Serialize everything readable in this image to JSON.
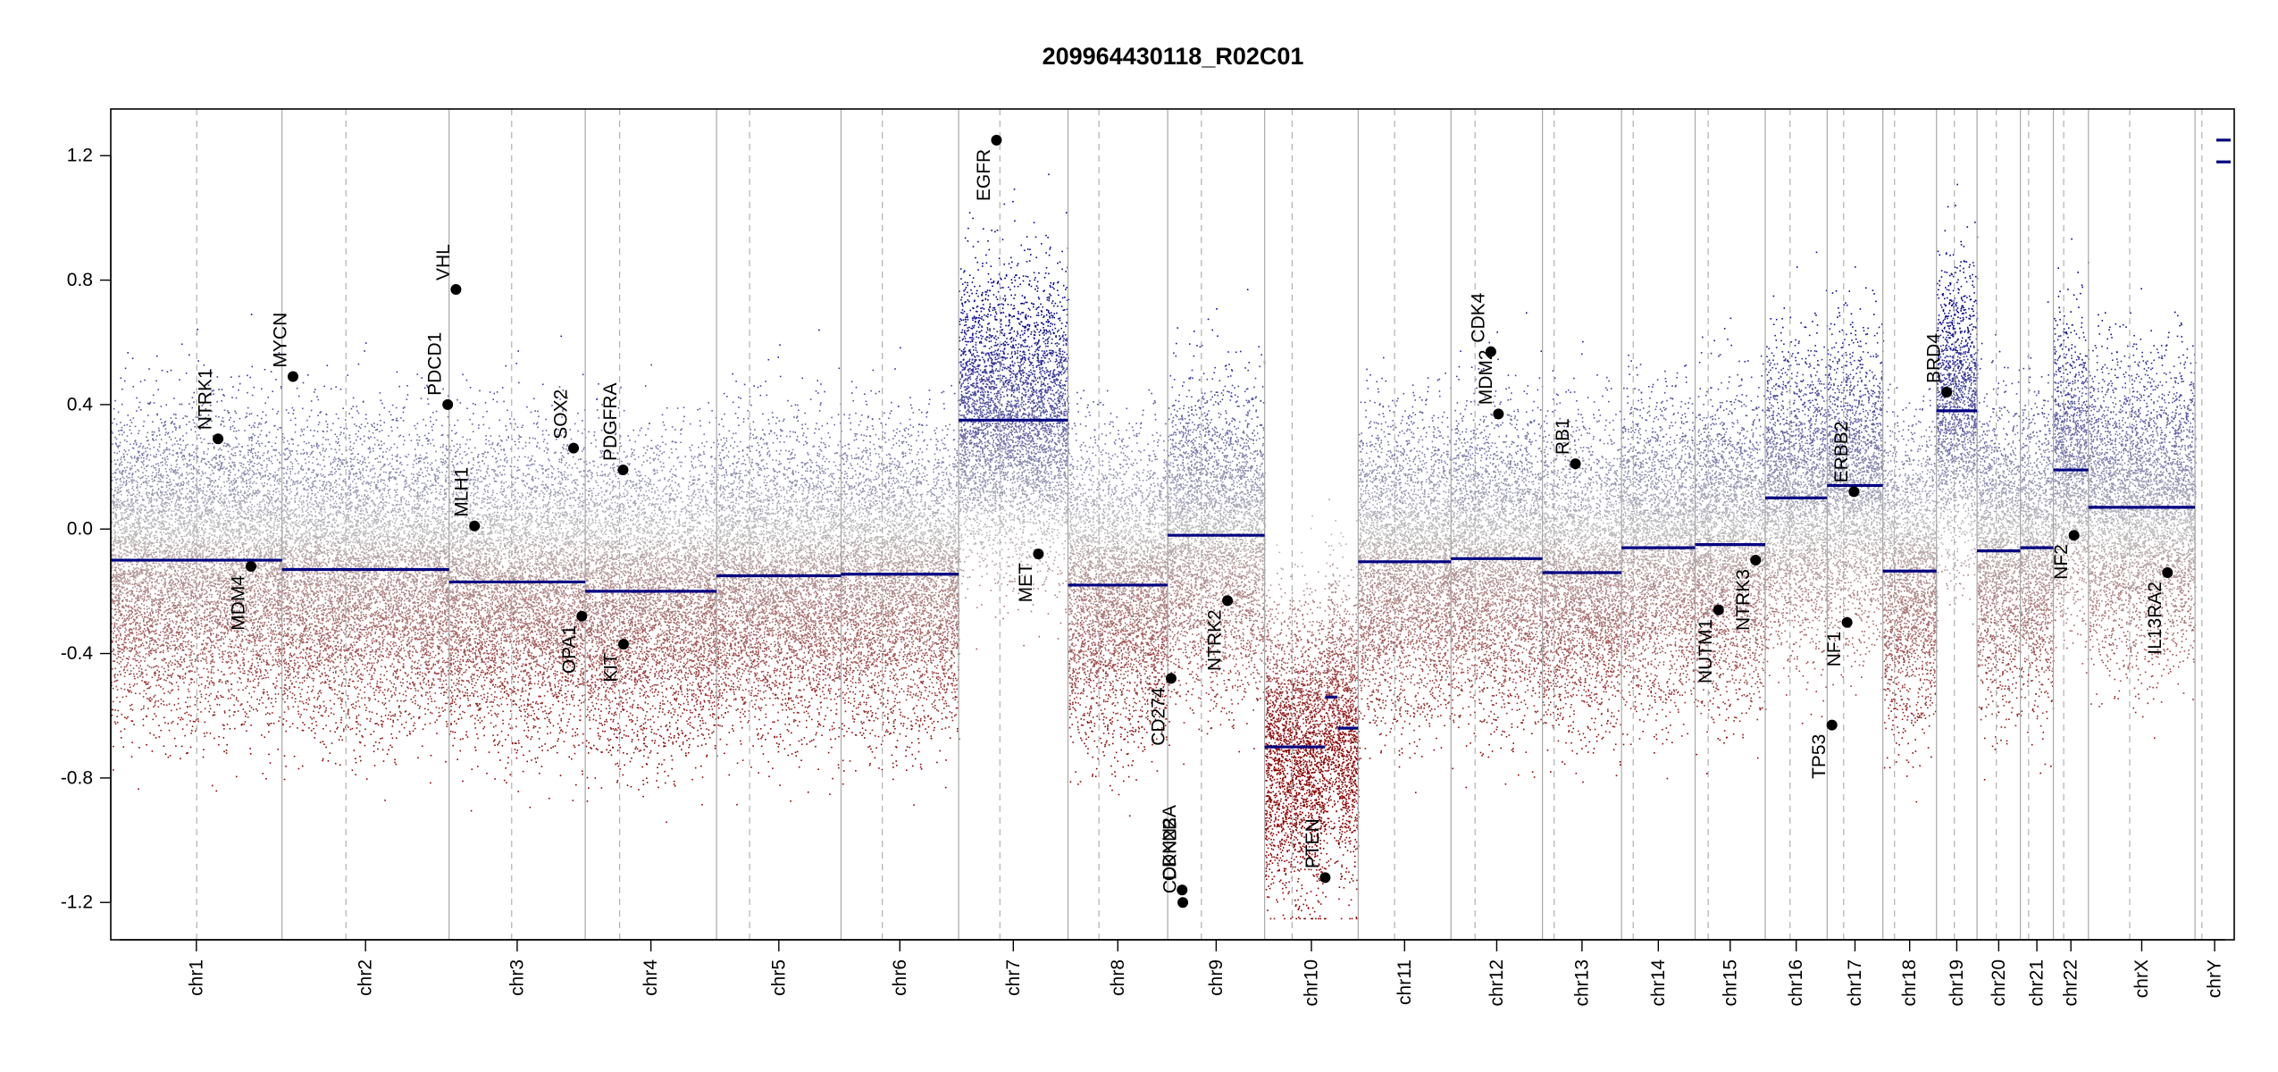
{
  "chart_data": {
    "type": "scatter",
    "title": "209964430118_R02C01",
    "xlabel": "",
    "ylabel": "",
    "ylim": [
      -1.32,
      1.35
    ],
    "y_ticks": [
      -1.2,
      -0.8,
      -0.4,
      0.0,
      0.4,
      0.8,
      1.2
    ],
    "y_tick_labels": [
      "-1.2",
      "-0.8",
      "-0.4",
      "0.0",
      "0.4",
      "0.8",
      "1.2"
    ],
    "colors": {
      "gain": "#00008b",
      "loss": "#8b0000",
      "neutral": "#bbbbbb",
      "segment": "#000080",
      "marker": "#000000"
    },
    "chromosomes": [
      {
        "name": "chr1",
        "label": "chr1",
        "length": 249,
        "centromere": 125,
        "segments": [
          {
            "start": 0,
            "end": 249,
            "value": -0.1
          }
        ]
      },
      {
        "name": "chr2",
        "label": "chr2",
        "length": 243,
        "centromere": 93,
        "segments": [
          {
            "start": 0,
            "end": 243,
            "value": -0.13
          }
        ]
      },
      {
        "name": "chr3",
        "label": "chr3",
        "length": 198,
        "centromere": 91,
        "segments": [
          {
            "start": 0,
            "end": 198,
            "value": -0.17
          }
        ]
      },
      {
        "name": "chr4",
        "label": "chr4",
        "length": 191,
        "centromere": 50,
        "segments": [
          {
            "start": 0,
            "end": 191,
            "value": -0.2
          }
        ]
      },
      {
        "name": "chr5",
        "label": "chr5",
        "length": 181,
        "centromere": 48,
        "segments": [
          {
            "start": 0,
            "end": 181,
            "value": -0.15
          }
        ]
      },
      {
        "name": "chr6",
        "label": "chr6",
        "length": 171,
        "centromere": 60,
        "segments": [
          {
            "start": 0,
            "end": 171,
            "value": -0.145
          }
        ]
      },
      {
        "name": "chr7",
        "label": "chr7",
        "length": 159,
        "centromere": 60,
        "segments": [
          {
            "start": 0,
            "end": 159,
            "value": 0.35
          }
        ]
      },
      {
        "name": "chr8",
        "label": "chr8",
        "length": 145,
        "centromere": 45,
        "segments": [
          {
            "start": 0,
            "end": 145,
            "value": -0.18
          }
        ]
      },
      {
        "name": "chr9",
        "label": "chr9",
        "length": 141,
        "centromere": 49,
        "segments": [
          {
            "start": 0,
            "end": 141,
            "value": -0.02
          }
        ]
      },
      {
        "name": "chr10",
        "label": "chr10",
        "length": 136,
        "centromere": 40,
        "segments": [
          {
            "start": 0,
            "end": 88,
            "value": -0.7
          },
          {
            "start": 88,
            "end": 106,
            "value": -0.54
          },
          {
            "start": 106,
            "end": 136,
            "value": -0.64
          }
        ]
      },
      {
        "name": "chr11",
        "label": "chr11",
        "length": 135,
        "centromere": 53,
        "segments": [
          {
            "start": 0,
            "end": 135,
            "value": -0.105
          }
        ]
      },
      {
        "name": "chr12",
        "label": "chr12",
        "length": 133,
        "centromere": 35,
        "segments": [
          {
            "start": 0,
            "end": 133,
            "value": -0.095
          }
        ]
      },
      {
        "name": "chr13",
        "label": "chr13",
        "length": 115,
        "centromere": 17,
        "segments": [
          {
            "start": 0,
            "end": 115,
            "value": -0.14
          }
        ]
      },
      {
        "name": "chr14",
        "label": "chr14",
        "length": 107,
        "centromere": 17,
        "segments": [
          {
            "start": 0,
            "end": 107,
            "value": -0.06
          }
        ]
      },
      {
        "name": "chr15",
        "label": "chr15",
        "length": 102,
        "centromere": 19,
        "segments": [
          {
            "start": 0,
            "end": 102,
            "value": -0.05
          }
        ]
      },
      {
        "name": "chr16",
        "label": "chr16",
        "length": 90,
        "centromere": 36,
        "segments": [
          {
            "start": 0,
            "end": 90,
            "value": 0.1
          }
        ]
      },
      {
        "name": "chr17",
        "label": "chr17",
        "length": 81,
        "centromere": 24,
        "segments": [
          {
            "start": 0,
            "end": 81,
            "value": 0.14
          }
        ]
      },
      {
        "name": "chr18",
        "label": "chr18",
        "length": 78,
        "centromere": 17,
        "segments": [
          {
            "start": 0,
            "end": 78,
            "value": -0.135
          }
        ]
      },
      {
        "name": "chr19",
        "label": "chr19",
        "length": 59,
        "centromere": 26,
        "segments": [
          {
            "start": 0,
            "end": 59,
            "value": 0.38
          }
        ]
      },
      {
        "name": "chr20",
        "label": "chr20",
        "length": 63,
        "centromere": 28,
        "segments": [
          {
            "start": 0,
            "end": 63,
            "value": -0.07
          }
        ]
      },
      {
        "name": "chr21",
        "label": "chr21",
        "length": 48,
        "centromere": 12,
        "segments": [
          {
            "start": 0,
            "end": 48,
            "value": -0.06
          }
        ]
      },
      {
        "name": "chr22",
        "label": "chr22",
        "length": 51,
        "centromere": 15,
        "segments": [
          {
            "start": 0,
            "end": 51,
            "value": 0.19
          }
        ]
      },
      {
        "name": "chrX",
        "label": "chrX",
        "length": 155,
        "centromere": 60,
        "segments": [
          {
            "start": 0,
            "end": 155,
            "value": 0.07
          }
        ]
      },
      {
        "name": "chrY",
        "label": "chrY",
        "length": 57,
        "centromere": 10,
        "segments": [
          {
            "start": 0,
            "end": 57,
            "value": 1.18
          },
          {
            "start": 0,
            "end": 57,
            "value": 1.25
          }
        ]
      }
    ],
    "genes": [
      {
        "name": "NTRK1",
        "chr": "chr1",
        "pos": 156,
        "value": 0.29,
        "side": "up"
      },
      {
        "name": "MDM4",
        "chr": "chr1",
        "pos": 204,
        "value": -0.12,
        "side": "down"
      },
      {
        "name": "MYCN",
        "chr": "chr2",
        "pos": 16,
        "value": 0.49,
        "side": "up"
      },
      {
        "name": "PDCD1",
        "chr": "chr2",
        "pos": 241,
        "value": 0.4,
        "side": "up"
      },
      {
        "name": "VHL",
        "chr": "chr3",
        "pos": 10,
        "value": 0.77,
        "side": "up"
      },
      {
        "name": "MLH1",
        "chr": "chr3",
        "pos": 37,
        "value": 0.01,
        "side": "up"
      },
      {
        "name": "SOX2",
        "chr": "chr3",
        "pos": 181,
        "value": 0.26,
        "side": "up"
      },
      {
        "name": "OPA1",
        "chr": "chr3",
        "pos": 193,
        "value": -0.28,
        "side": "down"
      },
      {
        "name": "PDGFRA",
        "chr": "chr4",
        "pos": 55,
        "value": 0.19,
        "side": "up"
      },
      {
        "name": "KIT",
        "chr": "chr4",
        "pos": 55.6,
        "value": -0.37,
        "side": "down"
      },
      {
        "name": "EGFR",
        "chr": "chr7",
        "pos": 55,
        "value": 1.25,
        "side": "down"
      },
      {
        "name": "MET",
        "chr": "chr7",
        "pos": 116,
        "value": -0.08,
        "side": "down"
      },
      {
        "name": "CD274",
        "chr": "chr9",
        "pos": 5,
        "value": -0.48,
        "side": "down"
      },
      {
        "name": "CDKN2A",
        "chr": "chr9",
        "pos": 21,
        "value": -1.16,
        "side": "up"
      },
      {
        "name": "CDKN2B",
        "chr": "chr9",
        "pos": 22,
        "value": -1.2,
        "side": "up"
      },
      {
        "name": "NTRK2",
        "chr": "chr9",
        "pos": 87,
        "value": -0.23,
        "side": "down"
      },
      {
        "name": "PTEN",
        "chr": "chr10",
        "pos": 88,
        "value": -1.12,
        "side": "up"
      },
      {
        "name": "MDM2",
        "chr": "chr12",
        "pos": 69,
        "value": 0.37,
        "side": "up"
      },
      {
        "name": "CDK4",
        "chr": "chr12",
        "pos": 58,
        "value": 0.57,
        "side": "up"
      },
      {
        "name": "RB1",
        "chr": "chr13",
        "pos": 48,
        "value": 0.21,
        "side": "up"
      },
      {
        "name": "NUTM1",
        "chr": "chr15",
        "pos": 34,
        "value": -0.26,
        "side": "down"
      },
      {
        "name": "NTRK3",
        "chr": "chr15",
        "pos": 88,
        "value": -0.1,
        "side": "down"
      },
      {
        "name": "TP53",
        "chr": "chr17",
        "pos": 7,
        "value": -0.63,
        "side": "down"
      },
      {
        "name": "NF1",
        "chr": "chr17",
        "pos": 29,
        "value": -0.3,
        "side": "down"
      },
      {
        "name": "ERBB2",
        "chr": "chr17",
        "pos": 39,
        "value": 0.12,
        "side": "up"
      },
      {
        "name": "BRD4",
        "chr": "chr19",
        "pos": 15,
        "value": 0.44,
        "side": "up"
      },
      {
        "name": "NF2",
        "chr": "chr22",
        "pos": 30,
        "value": -0.02,
        "side": "down"
      },
      {
        "name": "IL13RA2",
        "chr": "chrX",
        "pos": 115,
        "value": -0.14,
        "side": "down"
      }
    ]
  }
}
